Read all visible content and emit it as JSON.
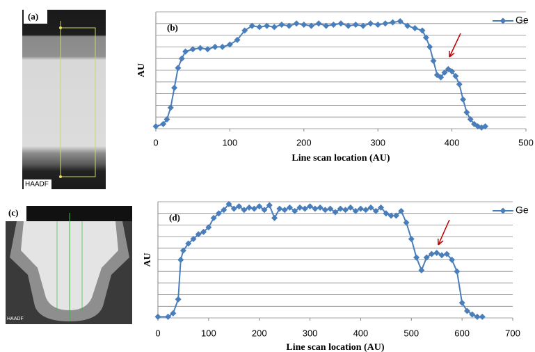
{
  "panels": {
    "a": {
      "label": "(a)",
      "caption": "HAADF"
    },
    "c": {
      "label": "(c)",
      "caption": "HAADF"
    }
  },
  "chart_data": [
    {
      "type": "line",
      "title": "(b)",
      "x_label": "Line scan location (AU)",
      "y_label": "AU",
      "xlim": [
        0,
        500
      ],
      "xticks": [
        0,
        100,
        200,
        300,
        400,
        500
      ],
      "ylim": [
        0,
        10
      ],
      "yticks": [
        0,
        1,
        2,
        3,
        4,
        5,
        6,
        7,
        8,
        9,
        10
      ],
      "grid": true,
      "legend": "top-right",
      "x": [
        0,
        10,
        15,
        20,
        25,
        30,
        35,
        40,
        50,
        60,
        70,
        80,
        90,
        100,
        110,
        120,
        130,
        140,
        150,
        160,
        170,
        180,
        190,
        200,
        210,
        220,
        230,
        240,
        250,
        260,
        270,
        280,
        290,
        300,
        310,
        320,
        330,
        340,
        350,
        360,
        365,
        370,
        375,
        380,
        385,
        390,
        395,
        400,
        405,
        410,
        415,
        420,
        425,
        430,
        435,
        440,
        445
      ],
      "series": [
        {
          "name": "Ge",
          "color": "#4a7ebb",
          "values": [
            0.2,
            0.4,
            0.8,
            1.8,
            3.5,
            5.2,
            6.0,
            6.6,
            6.8,
            6.9,
            6.8,
            7.0,
            7.0,
            7.2,
            7.6,
            8.4,
            8.8,
            8.7,
            8.8,
            8.7,
            8.9,
            8.8,
            9.0,
            8.9,
            8.8,
            9.0,
            8.8,
            8.9,
            9.0,
            8.8,
            8.9,
            8.8,
            9.0,
            8.9,
            9.0,
            9.1,
            9.2,
            8.8,
            8.6,
            8.4,
            7.8,
            7.0,
            5.8,
            4.6,
            4.4,
            4.8,
            5.1,
            4.9,
            4.5,
            3.8,
            2.5,
            1.4,
            0.8,
            0.4,
            0.2,
            0.1,
            0.2
          ]
        }
      ]
    },
    {
      "type": "line",
      "title": "(d)",
      "x_label": "Line scan location (AU)",
      "y_label": "AU",
      "xlim": [
        0,
        700
      ],
      "xticks": [
        0,
        100,
        200,
        300,
        400,
        500,
        600,
        700
      ],
      "ylim": [
        0,
        10
      ],
      "yticks": [
        0,
        1,
        2,
        3,
        4,
        5,
        6,
        7,
        8,
        9,
        10
      ],
      "grid": true,
      "legend": "top-right",
      "x": [
        0,
        20,
        30,
        40,
        45,
        50,
        60,
        70,
        80,
        90,
        100,
        110,
        120,
        130,
        140,
        150,
        160,
        170,
        180,
        190,
        200,
        210,
        220,
        230,
        240,
        250,
        260,
        270,
        280,
        290,
        300,
        310,
        320,
        330,
        340,
        350,
        360,
        370,
        380,
        390,
        400,
        410,
        420,
        430,
        440,
        450,
        460,
        470,
        480,
        490,
        500,
        510,
        520,
        530,
        540,
        550,
        560,
        570,
        580,
        590,
        600,
        610,
        620,
        630,
        640
      ],
      "series": [
        {
          "name": "Ge",
          "color": "#4a7ebb",
          "values": [
            0.1,
            0.1,
            0.4,
            1.6,
            5.0,
            5.8,
            6.4,
            6.8,
            7.2,
            7.4,
            7.8,
            8.6,
            9.0,
            9.3,
            9.8,
            9.4,
            9.6,
            9.3,
            9.5,
            9.4,
            9.6,
            9.3,
            9.7,
            8.6,
            9.4,
            9.3,
            9.5,
            9.2,
            9.5,
            9.4,
            9.6,
            9.4,
            9.5,
            9.3,
            9.4,
            9.1,
            9.4,
            9.3,
            9.5,
            9.2,
            9.4,
            9.3,
            9.5,
            9.2,
            9.5,
            9.0,
            8.8,
            8.8,
            9.2,
            8.2,
            6.8,
            5.2,
            4.1,
            5.2,
            5.5,
            5.6,
            5.4,
            5.5,
            5.0,
            4.0,
            1.3,
            0.6,
            0.3,
            0.1,
            0.1
          ]
        }
      ]
    }
  ]
}
